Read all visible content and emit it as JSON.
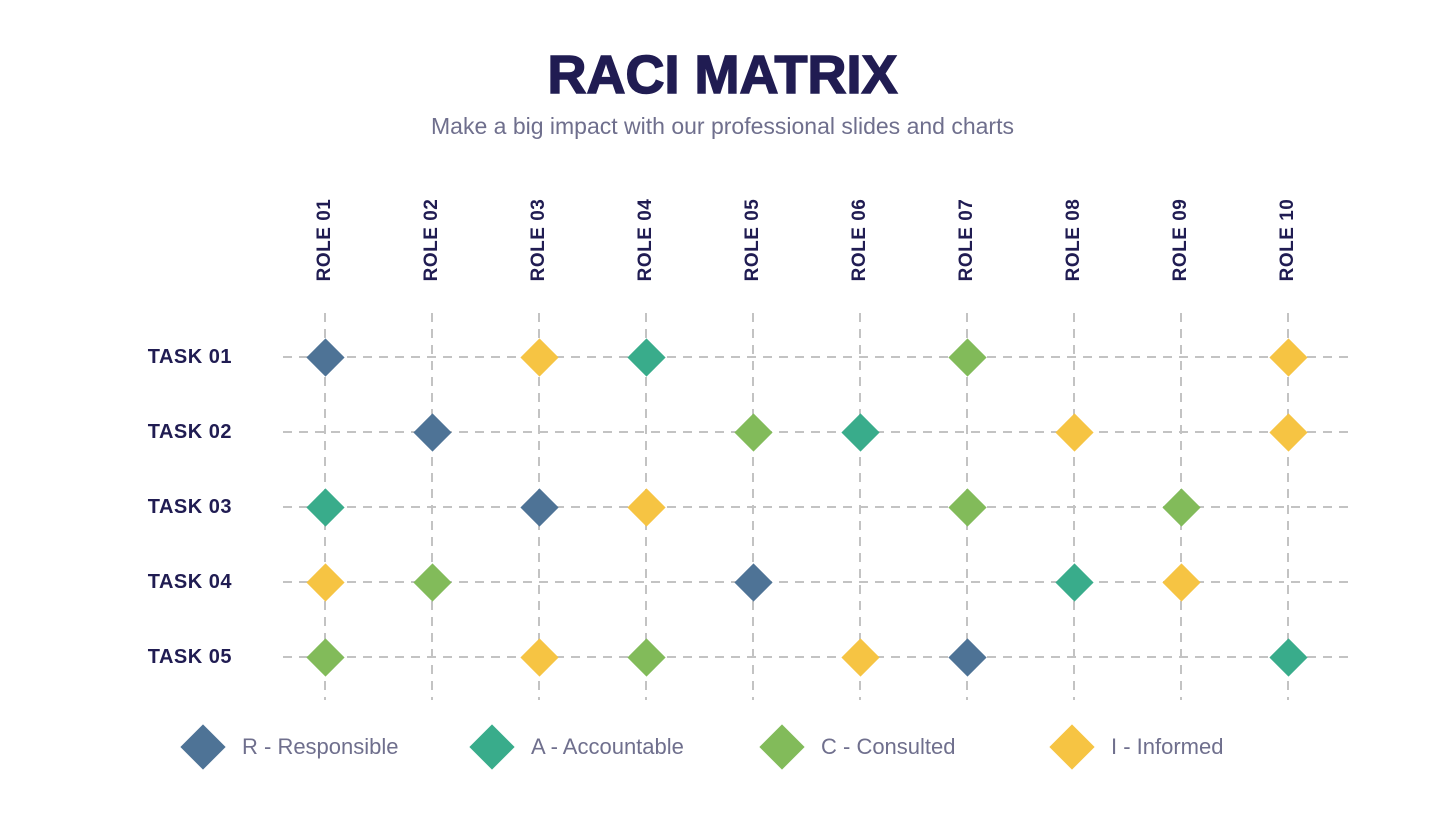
{
  "header": {
    "title": "RACI MATRIX",
    "subtitle": "Make a big impact with our professional slides and charts"
  },
  "chart_data": {
    "type": "table",
    "title": "RACI MATRIX",
    "subtitle": "Make a big impact with our professional slides and charts",
    "columns": [
      "ROLE 01",
      "ROLE 02",
      "ROLE 03",
      "ROLE 04",
      "ROLE 05",
      "ROLE 06",
      "ROLE 07",
      "ROLE 08",
      "ROLE 09",
      "ROLE 10"
    ],
    "rows": [
      "TASK 01",
      "TASK 02",
      "TASK 03",
      "TASK 04",
      "TASK 05"
    ],
    "matrix": [
      [
        "R",
        "",
        "I",
        "A",
        "",
        "",
        "C",
        "",
        "",
        "I"
      ],
      [
        "",
        "R",
        "",
        "",
        "C",
        "A",
        "",
        "I",
        "",
        "I"
      ],
      [
        "A",
        "",
        "R",
        "I",
        "",
        "",
        "C",
        "",
        "C",
        ""
      ],
      [
        "I",
        "C",
        "",
        "",
        "R",
        "",
        "",
        "A",
        "I",
        ""
      ],
      [
        "C",
        "",
        "I",
        "C",
        "",
        "I",
        "R",
        "",
        "",
        "A"
      ]
    ],
    "marker_shape": "diamond",
    "grid": "dashed",
    "legend_position": "bottom"
  },
  "legend": {
    "items": [
      {
        "code": "R",
        "label": "R - Responsible",
        "color": "#4E7396"
      },
      {
        "code": "A",
        "label": "A - Accountable",
        "color": "#39AC8B"
      },
      {
        "code": "C",
        "label": "C - Consulted",
        "color": "#82BB5A"
      },
      {
        "code": "I",
        "label": "I - Informed",
        "color": "#F6C443"
      }
    ]
  },
  "colors": {
    "background": "#FFFFFF",
    "title_text": "#201C52",
    "subtitle_text": "#6F6F8D",
    "label_text": "#201C52",
    "legend_text": "#6F6F8D",
    "grid_line": "#C3C3C3",
    "R": "#4E7396",
    "A": "#39AC8B",
    "C": "#82BB5A",
    "I": "#F6C443"
  }
}
